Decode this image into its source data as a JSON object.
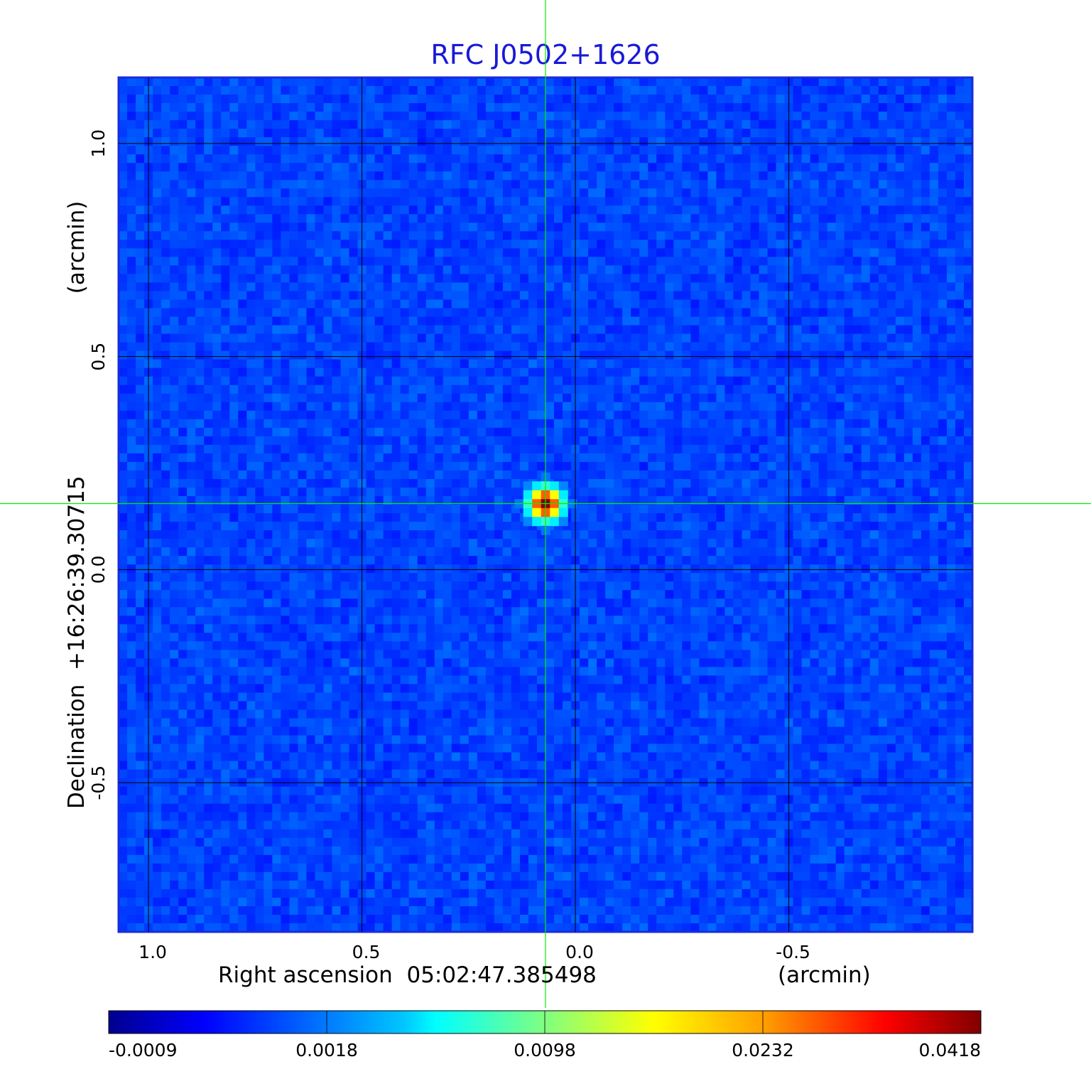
{
  "chart_data": {
    "type": "heatmap",
    "title": "RFC J0502+1626",
    "xlabel": "Right ascension  05:02:47.385498",
    "xlabel_unit": "(arcmin)",
    "ylabel": "Declination  +16:26:39.30715",
    "ylabel_unit": "(arcmin)",
    "x_ticks": [
      {
        "value": 1.0,
        "label": "1.0"
      },
      {
        "value": 0.5,
        "label": "0.5"
      },
      {
        "value": 0.0,
        "label": "0.0"
      },
      {
        "value": -0.5,
        "label": "-0.5"
      }
    ],
    "y_ticks": [
      {
        "value": 1.0,
        "label": "1.0"
      },
      {
        "value": 0.5,
        "label": "0.5"
      },
      {
        "value": 0.0,
        "label": "0.0"
      },
      {
        "value": -0.5,
        "label": "-0.5"
      }
    ],
    "xlim": [
      1.07,
      -0.93
    ],
    "ylim": [
      -0.85,
      1.155
    ],
    "grid": true,
    "crosshair": {
      "x": 0.07,
      "y": 0.155
    },
    "source_peak": {
      "x": 0.07,
      "y": 0.155,
      "value": 0.0418
    },
    "background_level": 0.0,
    "colorbar": {
      "position": "bottom",
      "ticks": [
        {
          "label": "-0.0009",
          "value": -0.0009
        },
        {
          "label": "0.0018",
          "value": 0.0018
        },
        {
          "label": "0.0098",
          "value": 0.0098
        },
        {
          "label": "0.0232",
          "value": 0.0232
        },
        {
          "label": "0.0418",
          "value": 0.0418
        }
      ],
      "colormap": "jet"
    },
    "colors": {
      "title": "#1a1ad6",
      "grid": "#000000",
      "crosshair": "#00ee00",
      "frame": "#1a2bd8"
    }
  }
}
